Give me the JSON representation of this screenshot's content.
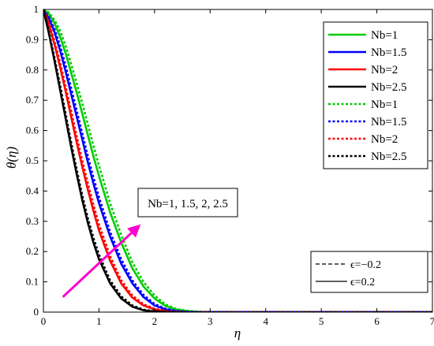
{
  "chart_data": {
    "type": "line",
    "xlabel": "η",
    "ylabel": "θ(η)",
    "xlim": [
      0,
      7
    ],
    "ylim": [
      0,
      1
    ],
    "x_ticks": [
      "0",
      "1",
      "2",
      "3",
      "4",
      "5",
      "6",
      "7"
    ],
    "y_ticks": [
      "0",
      "0.1",
      "0.2",
      "0.3",
      "0.4",
      "0.5",
      "0.6",
      "0.7",
      "0.8",
      "0.9",
      "1"
    ],
    "grid": false,
    "legend_position": "top-right",
    "x": [
      0,
      0.1,
      0.2,
      0.3,
      0.4,
      0.5,
      0.6,
      0.7,
      0.8,
      0.9,
      1.0,
      1.2,
      1.4,
      1.6,
      1.8,
      2.0,
      2.2,
      2.4,
      2.6,
      2.8,
      3.0,
      4.0,
      5.0,
      6.0,
      7.0
    ],
    "series": [
      {
        "name": "Nb=1",
        "color": "#00cc00",
        "dash": "solid",
        "values": [
          1.0,
          0.985,
          0.955,
          0.91,
          0.855,
          0.79,
          0.725,
          0.655,
          0.585,
          0.515,
          0.45,
          0.33,
          0.23,
          0.145,
          0.085,
          0.045,
          0.02,
          0.008,
          0.003,
          0.001,
          0,
          0,
          0,
          0,
          0
        ]
      },
      {
        "name": "Nb=1.5",
        "color": "#0000ff",
        "dash": "solid",
        "values": [
          1.0,
          0.97,
          0.925,
          0.865,
          0.795,
          0.72,
          0.645,
          0.57,
          0.495,
          0.425,
          0.36,
          0.25,
          0.16,
          0.095,
          0.05,
          0.022,
          0.009,
          0.003,
          0.001,
          0,
          0,
          0,
          0,
          0,
          0
        ]
      },
      {
        "name": "Nb=2",
        "color": "#ff0000",
        "dash": "solid",
        "values": [
          1.0,
          0.95,
          0.885,
          0.81,
          0.73,
          0.645,
          0.56,
          0.48,
          0.405,
          0.335,
          0.27,
          0.17,
          0.095,
          0.048,
          0.022,
          0.009,
          0.003,
          0.001,
          0,
          0,
          0,
          0,
          0,
          0,
          0
        ]
      },
      {
        "name": "Nb=2.5",
        "color": "#000000",
        "dash": "solid",
        "values": [
          1.0,
          0.92,
          0.83,
          0.735,
          0.64,
          0.545,
          0.455,
          0.37,
          0.295,
          0.23,
          0.175,
          0.095,
          0.045,
          0.018,
          0.006,
          0.002,
          0.001,
          0,
          0,
          0,
          0,
          0,
          0,
          0,
          0
        ]
      },
      {
        "name": "Nb=1",
        "color": "#00cc00",
        "dash": "dotted",
        "values": [
          1.0,
          0.99,
          0.965,
          0.93,
          0.88,
          0.82,
          0.755,
          0.69,
          0.62,
          0.55,
          0.485,
          0.36,
          0.255,
          0.165,
          0.1,
          0.055,
          0.025,
          0.01,
          0.004,
          0.001,
          0,
          0,
          0,
          0,
          0
        ]
      },
      {
        "name": "Nb=1.5",
        "color": "#0000ff",
        "dash": "dotted",
        "values": [
          1.0,
          0.975,
          0.935,
          0.88,
          0.815,
          0.74,
          0.665,
          0.59,
          0.515,
          0.445,
          0.38,
          0.265,
          0.175,
          0.105,
          0.057,
          0.027,
          0.011,
          0.004,
          0.001,
          0,
          0,
          0,
          0,
          0,
          0
        ]
      },
      {
        "name": "Nb=2",
        "color": "#ff0000",
        "dash": "dotted",
        "values": [
          1.0,
          0.955,
          0.895,
          0.825,
          0.745,
          0.665,
          0.58,
          0.5,
          0.425,
          0.355,
          0.29,
          0.185,
          0.105,
          0.055,
          0.026,
          0.011,
          0.004,
          0.001,
          0,
          0,
          0,
          0,
          0,
          0,
          0
        ]
      },
      {
        "name": "Nb=2.5",
        "color": "#000000",
        "dash": "dotted",
        "values": [
          1.0,
          0.925,
          0.84,
          0.75,
          0.655,
          0.56,
          0.47,
          0.385,
          0.31,
          0.245,
          0.19,
          0.105,
          0.052,
          0.022,
          0.008,
          0.003,
          0.001,
          0,
          0,
          0,
          0,
          0,
          0,
          0,
          0
        ]
      }
    ],
    "epsilon_legend": [
      {
        "label": "ϵ=−0.2",
        "dash": "dashed"
      },
      {
        "label": "ϵ=0.2",
        "dash": "solid"
      }
    ],
    "annotation": {
      "text": "Nb=1, 1.5, 2, 2.5",
      "arrow_color": "#ff00cc",
      "arrow_from": [
        0.35,
        0.05
      ],
      "arrow_to": [
        1.75,
        0.29
      ]
    }
  }
}
